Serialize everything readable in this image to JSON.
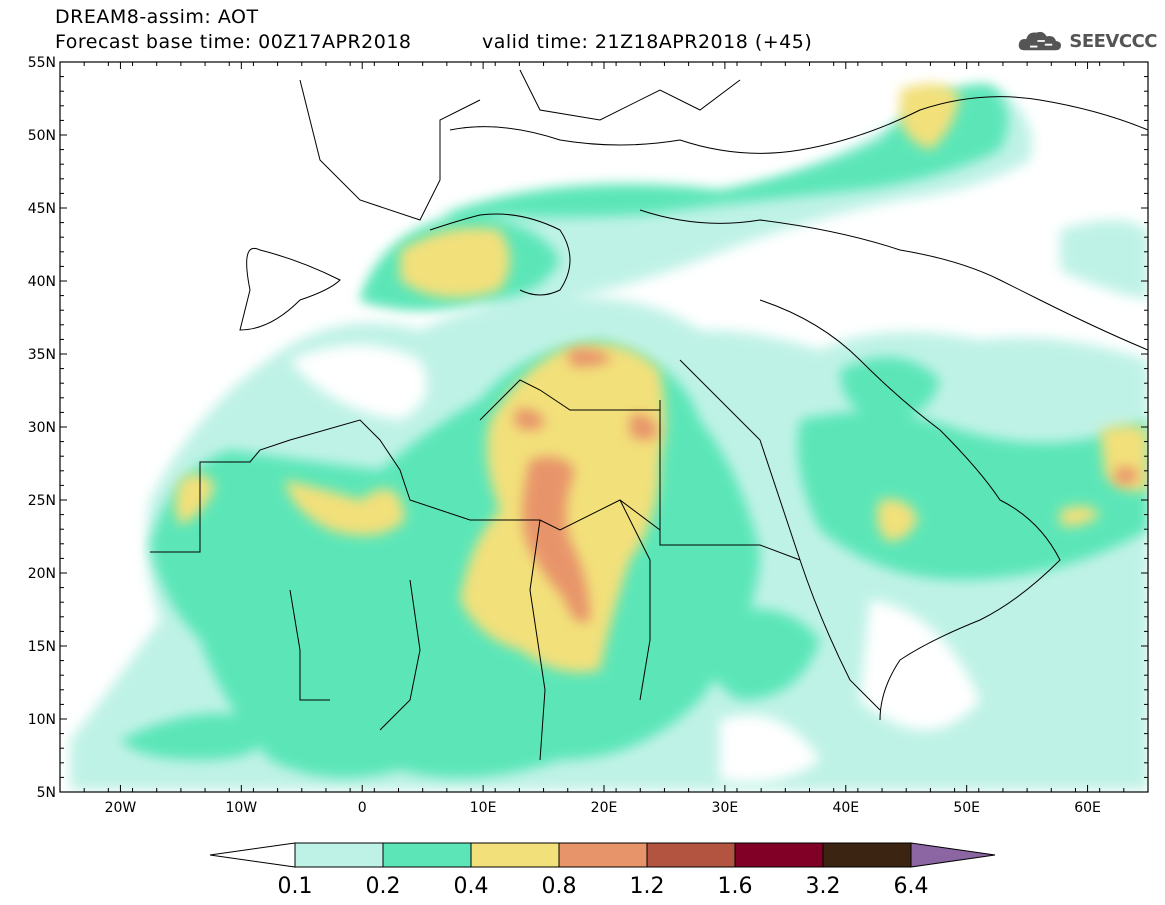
{
  "header": {
    "title_line1": "DREAM8-assim: AOT",
    "title_line2": "Forecast base time: 00Z17APR2018",
    "valid_time": "valid time: 21Z18APR2018 (+45)",
    "logo_text": "SEEVCCC"
  },
  "map": {
    "lat_labels": [
      "55N",
      "50N",
      "45N",
      "40N",
      "35N",
      "30N",
      "25N",
      "20N",
      "15N",
      "10N",
      "5N"
    ],
    "lon_labels": [
      "20W",
      "10W",
      "0",
      "10E",
      "20E",
      "30E",
      "40E",
      "50E",
      "60E"
    ],
    "extent": {
      "lon_min": -25,
      "lon_max": 65,
      "lat_min": 5,
      "lat_max": 55
    }
  },
  "colorbar": {
    "levels": [
      "0.1",
      "0.2",
      "0.4",
      "0.8",
      "1.2",
      "1.6",
      "3.2",
      "6.4"
    ],
    "colors": [
      "#ffffff",
      "#bff2e6",
      "#5ce6b8",
      "#f2e07a",
      "#e8946a",
      "#b35441",
      "#800026",
      "#3b2412",
      "#8b66a3"
    ]
  }
}
